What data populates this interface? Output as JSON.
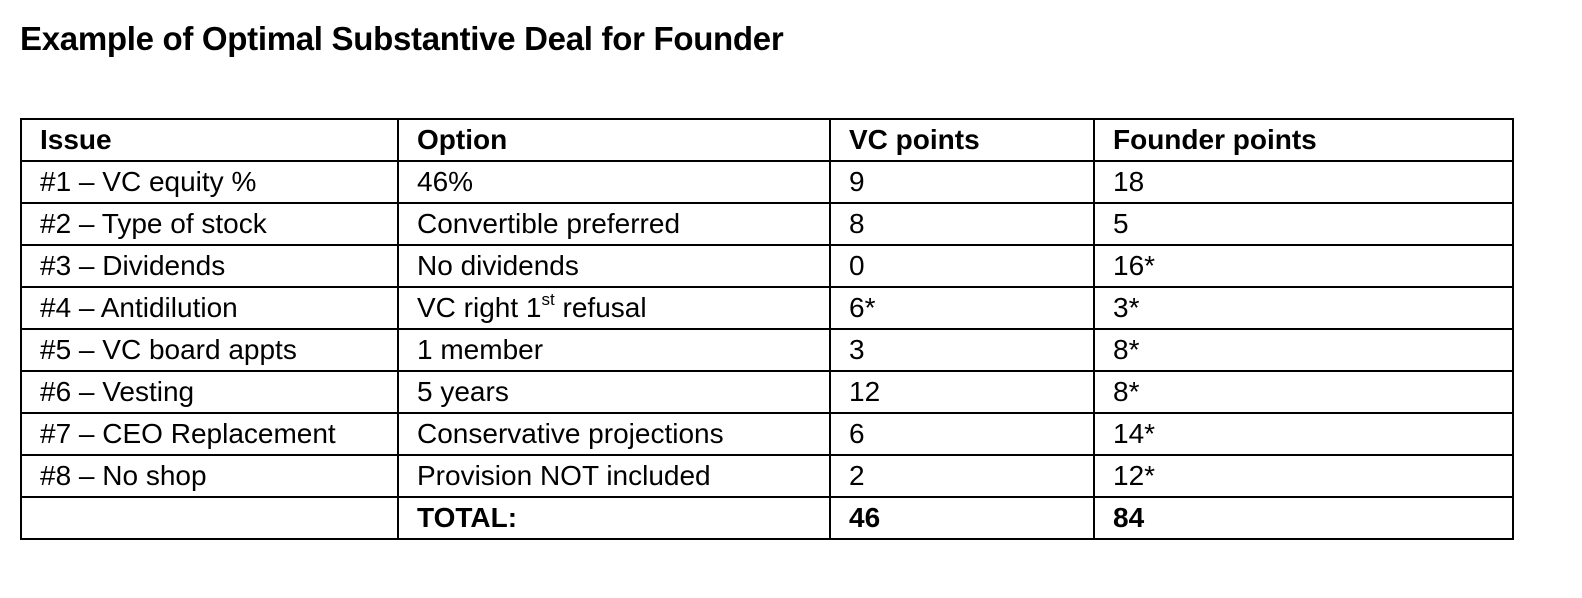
{
  "title": "Example of Optimal Substantive Deal for Founder",
  "table": {
    "headers": [
      "Issue",
      "Option",
      "VC points",
      "Founder points"
    ],
    "rows": [
      {
        "issue": "#1 – VC equity %",
        "option": "46%",
        "vc": "9",
        "founder": "18"
      },
      {
        "issue": "#2 – Type of stock",
        "option": "Convertible preferred",
        "vc": "8",
        "founder": "5"
      },
      {
        "issue": "#3 – Dividends",
        "option": "No dividends",
        "vc": "0",
        "founder": "16*"
      },
      {
        "issue": "#4 – Antidilution",
        "option_pre": "VC right 1",
        "option_sup": "st",
        "option_post": " refusal",
        "vc": "6*",
        "founder": "3*"
      },
      {
        "issue": "#5 – VC board appts",
        "option": "1 member",
        "vc": "3",
        "founder": "8*"
      },
      {
        "issue": "#6 – Vesting",
        "option": "5 years",
        "vc": "12",
        "founder": "8*"
      },
      {
        "issue": "#7 – CEO Replacement",
        "option": "Conservative projections",
        "vc": "6",
        "founder": "14*"
      },
      {
        "issue": "#8 – No shop",
        "option": "Provision NOT included",
        "vc": "2",
        "founder": "12*"
      }
    ],
    "total": {
      "issue": "",
      "label": "TOTAL:",
      "vc": "46",
      "founder": "84"
    }
  }
}
